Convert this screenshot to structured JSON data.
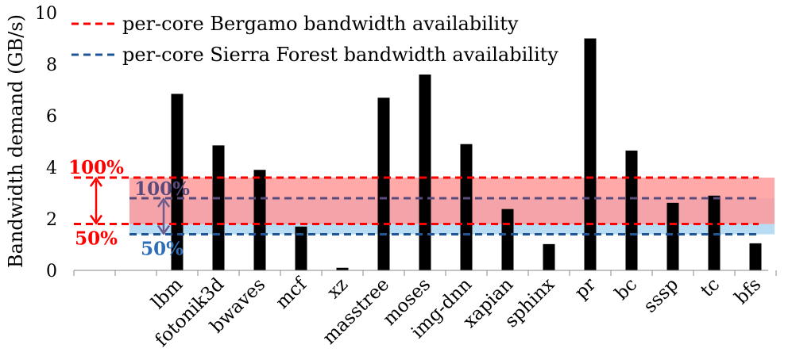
{
  "chart_data": {
    "type": "bar",
    "title": "",
    "xlabel": "",
    "ylabel": "Bandwidth demand (GB/s)",
    "ylim": [
      0,
      10
    ],
    "yticks": [
      0,
      2,
      4,
      6,
      8,
      10
    ],
    "grid": false,
    "leading_empty_categories": 2,
    "categories": [
      "lbm",
      "fotonik3d",
      "bwaves",
      "mcf",
      "xz",
      "masstree",
      "moses",
      "img-dnn",
      "xapian",
      "sphinx",
      "pr",
      "bc",
      "sssp",
      "tc",
      "bfs"
    ],
    "values": [
      6.85,
      4.85,
      3.9,
      1.7,
      0.1,
      6.7,
      7.6,
      4.9,
      2.38,
      1.02,
      9.0,
      4.65,
      2.62,
      2.9,
      1.05
    ],
    "bar_color": "#000000",
    "reference_lines": [
      {
        "label": "per-core Bergamo bandwidth availability",
        "value": 3.6,
        "half_value": 1.8,
        "color": "#ff0000",
        "band_color": "#ff9a9a",
        "band_opacity": 0.85,
        "marker_top": "100%",
        "marker_bottom": "50%"
      },
      {
        "label": "per-core Sierra Forest bandwidth availability",
        "value": 2.8,
        "half_value": 1.4,
        "color": "#1f5696",
        "band_color": "#9fd0f0",
        "band_opacity": 0.75,
        "marker_top": "100%",
        "marker_bottom": "50%"
      }
    ],
    "legend_position": "top",
    "arrow_colors": {
      "bergamo": "#ff0000",
      "sierra_forest": "#6b5b8c"
    },
    "label_colors": {
      "bergamo": "#ff0000",
      "sierra_top": "#5a4b7d",
      "sierra_bottom": "#2e6eb5"
    }
  }
}
